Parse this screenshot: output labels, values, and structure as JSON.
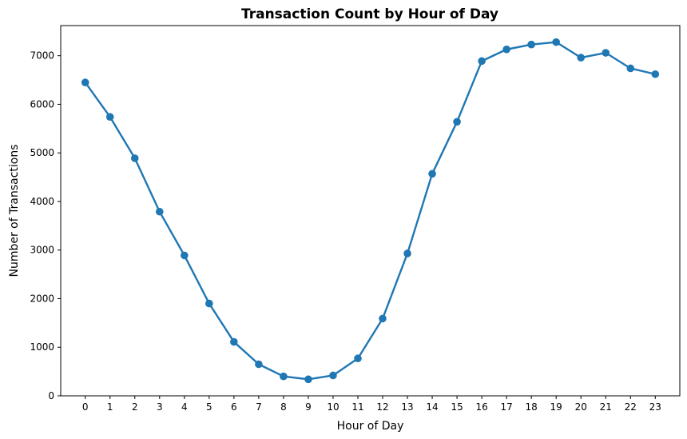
{
  "chart_data": {
    "type": "line",
    "title": "Transaction Count by Hour of Day",
    "xlabel": "Hour of Day",
    "ylabel": "Number of Transactions",
    "x": [
      0,
      1,
      2,
      3,
      4,
      5,
      6,
      7,
      8,
      9,
      10,
      11,
      12,
      13,
      14,
      15,
      16,
      17,
      18,
      19,
      20,
      21,
      22,
      23
    ],
    "x_tick_labels": [
      "0",
      "1",
      "2",
      "3",
      "4",
      "5",
      "6",
      "7",
      "8",
      "9",
      "10",
      "11",
      "12",
      "13",
      "14",
      "15",
      "16",
      "17",
      "18",
      "19",
      "20",
      "21",
      "22",
      "23"
    ],
    "series": [
      {
        "values": [
          6450,
          5740,
          4890,
          3790,
          2890,
          1900,
          1110,
          650,
          400,
          340,
          420,
          770,
          1590,
          2930,
          4570,
          5640,
          6890,
          7130,
          7230,
          7280,
          6960,
          7060,
          6740,
          6620
        ],
        "color": "#1f77b4",
        "marker": "circle"
      }
    ],
    "y_ticks": [
      0,
      1000,
      2000,
      3000,
      4000,
      5000,
      6000,
      7000
    ],
    "y_tick_labels": [
      "0",
      "1000",
      "2000",
      "3000",
      "4000",
      "5000",
      "6000",
      "7000"
    ],
    "xlim": [
      -0.99,
      23.99
    ],
    "ylim": [
      0,
      7620
    ],
    "grid": false,
    "legend": "none"
  }
}
